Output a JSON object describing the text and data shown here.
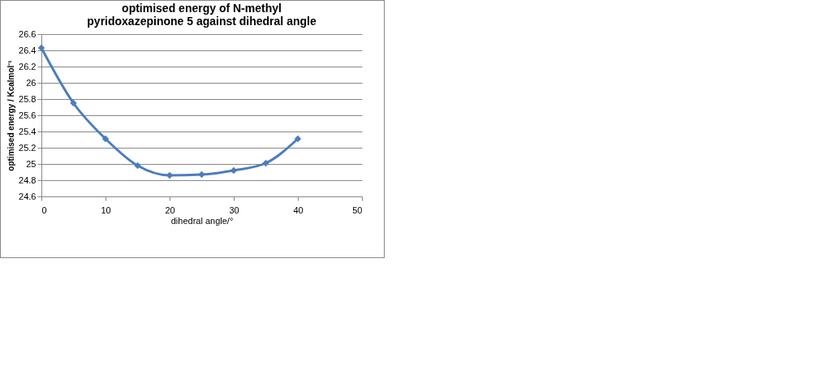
{
  "chart_data": {
    "type": "line",
    "title": "optimised energy of N-methyl pyridoxazepinone 5 against dihedral angle",
    "xlabel": "dihedral angle/°",
    "ylabel": "optimised energy / Kcalmol⁻¹",
    "x": [
      0,
      5,
      10,
      15,
      20,
      25,
      30,
      35,
      40
    ],
    "series": [
      {
        "color": "#4a7ebb",
        "values": [
          26.43,
          25.75,
          25.31,
          24.98,
          24.86,
          24.87,
          24.92,
          25.01,
          25.31
        ]
      }
    ],
    "xlim": [
      0,
      50
    ],
    "xticks": [
      0,
      10,
      20,
      30,
      40,
      50
    ],
    "ylim": [
      24.6,
      26.6
    ],
    "yticks": [
      24.6,
      24.8,
      25,
      25.2,
      25.4,
      25.6,
      25.8,
      26,
      26.2,
      26.4,
      26.6
    ],
    "grid": "y",
    "marker": "diamond",
    "line_style": "solid",
    "legend": false
  }
}
